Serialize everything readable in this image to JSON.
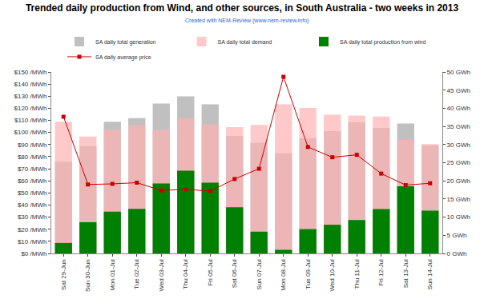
{
  "chart_data": {
    "type": "bar",
    "title": "Trended daily production from Wind, and other sources, in South Australia - two weeks in 2013",
    "subtitle": "Created with NEM-Review (www.nem-review.info)",
    "categories": [
      "Sat 29-Jun",
      "Sun 30-Jun",
      "Mon 01-Jul",
      "Tue 02-Jul",
      "Wed 03-Jul",
      "Thu 04-Jul",
      "Fri 05-Jul",
      "Sat 06-Jul",
      "Sun 07-Jul",
      "Mon 08-Jul",
      "Tue 09-Jul",
      "Wed 10-Jul",
      "Thu 11-Jul",
      "Fri 12-Jul",
      "Sat 13-Jul",
      "Sun 14-Jul"
    ],
    "stacked": false,
    "grid": false,
    "legend": "top",
    "series": [
      {
        "name": "SA daily total generation",
        "type": "bar",
        "axis": "y2",
        "color": "#c0c0c0",
        "values": [
          25.3,
          29.6,
          36.3,
          37.3,
          41.3,
          43.3,
          41.1,
          32.4,
          30.5,
          27.6,
          31.7,
          33.7,
          36.1,
          34.6,
          35.8,
          29.8
        ]
      },
      {
        "name": "SA daily total demand",
        "type": "bar",
        "axis": "y2",
        "color": "#ffb3b3",
        "values": [
          36.3,
          32.2,
          34.1,
          35.3,
          34.1,
          37.2,
          35.6,
          34.8,
          35.4,
          41.1,
          40.1,
          38.2,
          38.0,
          37.7,
          31.3,
          30.1
        ]
      },
      {
        "name": "SA daily total production from wind",
        "type": "bar",
        "axis": "y2",
        "color": "#008000",
        "values": [
          2.9,
          8.6,
          11.5,
          12.3,
          19.3,
          22.8,
          19.5,
          12.7,
          6.0,
          1.0,
          6.7,
          7.9,
          9.2,
          12.2,
          18.5,
          11.8
        ]
      },
      {
        "name": "SA daily average price",
        "type": "line",
        "axis": "y",
        "color": "#cc0000",
        "marker": "square",
        "line_style": "solid",
        "values": [
          113,
          57,
          57.5,
          58.5,
          52,
          53,
          51.5,
          61.5,
          70,
          146,
          88,
          79.5,
          81.5,
          66,
          56.5,
          58
        ]
      }
    ],
    "ylim": [
      0,
      150
    ],
    "yticks": [
      {
        "value": 0,
        "label": "$0 /MWh"
      },
      {
        "value": 10,
        "label": "$10 /MWh"
      },
      {
        "value": 20,
        "label": "$20 /MWh"
      },
      {
        "value": 30,
        "label": "$30 /MWh"
      },
      {
        "value": 40,
        "label": "$40 /MWh"
      },
      {
        "value": 50,
        "label": "$50 /MWh"
      },
      {
        "value": 60,
        "label": "$60 /MWh"
      },
      {
        "value": 70,
        "label": "$70 /MWh"
      },
      {
        "value": 80,
        "label": "$80 /MWh"
      },
      {
        "value": 90,
        "label": "$90 /MWh"
      },
      {
        "value": 100,
        "label": "$100 /MWh"
      },
      {
        "value": 110,
        "label": "$110 /MWh"
      },
      {
        "value": 120,
        "label": "$120 /MWh"
      },
      {
        "value": 130,
        "label": "$130 /MWh"
      },
      {
        "value": 140,
        "label": "$140 /MWh"
      },
      {
        "value": 150,
        "label": "$150 /MWh"
      }
    ],
    "y2lim": [
      0,
      50
    ],
    "y2ticks": [
      {
        "value": 0,
        "label": "0 GWh"
      },
      {
        "value": 5,
        "label": "5 GWh"
      },
      {
        "value": 10,
        "label": "10 GWh"
      },
      {
        "value": 15,
        "label": "15 GWh"
      },
      {
        "value": 20,
        "label": "20 GWh"
      },
      {
        "value": 25,
        "label": "25 GWh"
      },
      {
        "value": 30,
        "label": "30 GWh"
      },
      {
        "value": 35,
        "label": "35 GWh"
      },
      {
        "value": 40,
        "label": "40 GWh"
      },
      {
        "value": 45,
        "label": "45 GWh"
      },
      {
        "value": 50,
        "label": "50 GWh"
      }
    ]
  }
}
